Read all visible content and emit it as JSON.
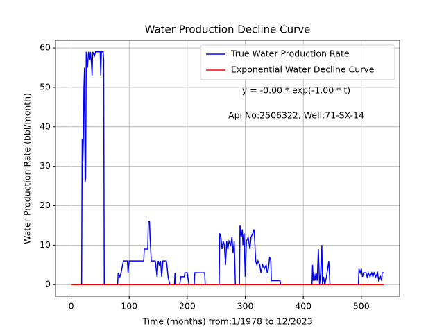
{
  "chart_data": {
    "type": "line",
    "title": "Water Production Decline Curve",
    "xlabel": "Time (months) from:1/1978 to:12/2023",
    "ylabel": "Water Production Rate (bbl/month)",
    "annotations": [
      "y = -0.00 * exp(-1.00 * t)",
      "Api No:2506322, Well:71-SX-14"
    ],
    "xlim": [
      -27,
      566
    ],
    "ylim": [
      -2.95,
      61.95
    ],
    "xticks": [
      0,
      100,
      200,
      300,
      400,
      500
    ],
    "yticks": [
      0,
      10,
      20,
      30,
      40,
      50,
      60
    ],
    "grid": true,
    "legend": "upper right",
    "series": [
      {
        "name": "True Water Production Rate",
        "color": "#0000ff",
        "x": [
          0,
          18,
          19,
          20,
          21,
          22,
          23,
          24,
          25,
          26,
          28,
          30,
          32,
          33,
          35,
          36,
          37,
          40,
          42,
          50,
          51,
          52,
          55,
          56,
          57,
          80,
          81,
          84,
          86,
          90,
          97,
          98,
          100,
          110,
          125,
          126,
          132,
          133,
          135,
          136,
          138,
          145,
          148,
          150,
          152,
          154,
          156,
          158,
          164,
          165,
          167,
          170,
          178,
          179,
          180,
          187,
          189,
          195,
          196,
          200,
          203,
          212,
          213,
          230,
          231,
          255,
          256,
          258,
          260,
          262,
          264,
          266,
          268,
          270,
          272,
          275,
          277,
          279,
          281,
          283,
          290,
          291,
          293,
          295,
          296,
          297,
          298,
          300,
          302,
          305,
          308,
          310,
          313,
          315,
          316,
          318,
          320,
          322,
          325,
          327,
          330,
          333,
          336,
          338,
          340,
          342,
          344,
          345,
          360,
          361,
          415,
          416,
          417,
          418,
          420,
          422,
          424,
          426,
          428,
          430,
          432,
          433,
          435,
          437,
          440,
          442,
          444,
          446,
          495,
          496,
          498,
          500,
          502,
          504,
          508,
          510,
          512,
          515,
          518,
          520,
          522,
          525,
          528,
          530,
          533,
          535,
          536,
          539
        ],
        "values": [
          0,
          0,
          37,
          31,
          37,
          50,
          55,
          26,
          27,
          59,
          55,
          59,
          57,
          59,
          56,
          53,
          59,
          58,
          59,
          59,
          53,
          59,
          59,
          57,
          0,
          0,
          3,
          2,
          3,
          6,
          6,
          3,
          6,
          6,
          6,
          9,
          9,
          16,
          16,
          12,
          6,
          6,
          2,
          6,
          5,
          6,
          2,
          6,
          6,
          5,
          2,
          0,
          0,
          3,
          0,
          0,
          2,
          2,
          3,
          3,
          0,
          0,
          3,
          3,
          0,
          0,
          13,
          12,
          9,
          11,
          10,
          5,
          11,
          9,
          11,
          10,
          12,
          8,
          11,
          0,
          0,
          15,
          12,
          14,
          10,
          12,
          13,
          2,
          11,
          12,
          9,
          12,
          13,
          14,
          12,
          6,
          5,
          6,
          5,
          3,
          5,
          4,
          5,
          3,
          4,
          7,
          6,
          1,
          1,
          0,
          0,
          5,
          1,
          3,
          1,
          3,
          1,
          9,
          0,
          3,
          10,
          0,
          2,
          0,
          2,
          4,
          6,
          0,
          0,
          4,
          3,
          4,
          2,
          3,
          3,
          2,
          3,
          2,
          3,
          2,
          3,
          2,
          3,
          1,
          2,
          1,
          3,
          3
        ]
      },
      {
        "name": "Exponential Water Decline Curve",
        "color": "#ff0000",
        "x": [
          0,
          539
        ],
        "values": [
          0,
          0
        ]
      }
    ]
  }
}
